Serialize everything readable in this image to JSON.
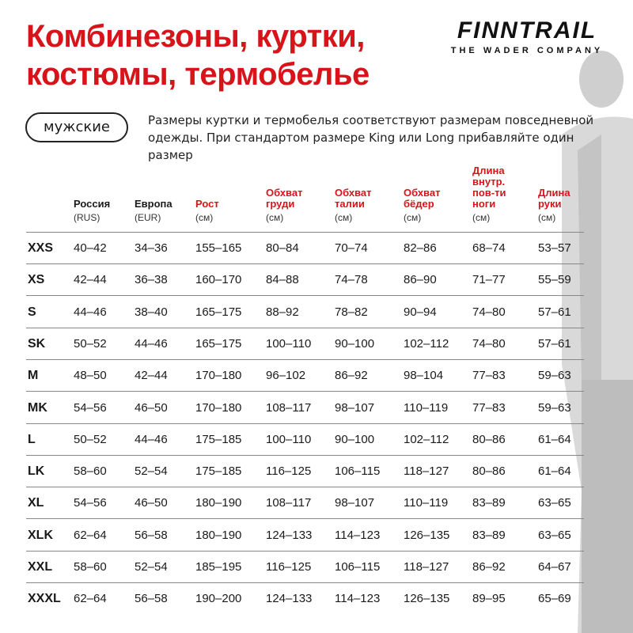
{
  "title_lines": [
    "Комбинезоны, куртки,",
    "костюмы, термобелье"
  ],
  "logo": {
    "brand": "FINNTRAIL",
    "tagline": "THE WADER COMPANY"
  },
  "category_label": "мужские",
  "note_lines": [
    "Размеры куртки и термобелья соответствуют размерам повседневной",
    "одежды. При стандартом размере King или Long прибавляйте один размер"
  ],
  "accent_color": "#d7141a",
  "columns": [
    {
      "label": "",
      "unit": ""
    },
    {
      "label": "Россия",
      "unit": "(RUS)",
      "highlight": false
    },
    {
      "label": "Европа",
      "unit": "(EUR)",
      "highlight": false
    },
    {
      "label": "Рост",
      "unit": "(см)",
      "highlight": true
    },
    {
      "label": "Обхват груди",
      "unit": "(см)",
      "highlight": true
    },
    {
      "label": "Обхват талии",
      "unit": "(см)",
      "highlight": true
    },
    {
      "label": "Обхват бёдер",
      "unit": "(см)",
      "highlight": true
    },
    {
      "label": "Длина внутр. пов-ти ноги",
      "unit": "(см)",
      "highlight": true
    },
    {
      "label": "Длина руки",
      "unit": "(см)",
      "highlight": true
    }
  ],
  "rows": [
    [
      "XXS",
      "40–42",
      "34–36",
      "155–165",
      "80–84",
      "70–74",
      "82–86",
      "68–74",
      "53–57"
    ],
    [
      "XS",
      "42–44",
      "36–38",
      "160–170",
      "84–88",
      "74–78",
      "86–90",
      "71–77",
      "55–59"
    ],
    [
      "S",
      "44–46",
      "38–40",
      "165–175",
      "88–92",
      "78–82",
      "90–94",
      "74–80",
      "57–61"
    ],
    [
      "SK",
      "50–52",
      "44–46",
      "165–175",
      "100–110",
      "90–100",
      "102–112",
      "74–80",
      "57–61"
    ],
    [
      "M",
      "48–50",
      "42–44",
      "170–180",
      "96–102",
      "86–92",
      "98–104",
      "77–83",
      "59–63"
    ],
    [
      "MK",
      "54–56",
      "46–50",
      "170–180",
      "108–117",
      "98–107",
      "110–119",
      "77–83",
      "59–63"
    ],
    [
      "L",
      "50–52",
      "44–46",
      "175–185",
      "100–110",
      "90–100",
      "102–112",
      "80–86",
      "61–64"
    ],
    [
      "LK",
      "58–60",
      "52–54",
      "175–185",
      "116–125",
      "106–115",
      "118–127",
      "80–86",
      "61–64"
    ],
    [
      "XL",
      "54–56",
      "46–50",
      "180–190",
      "108–117",
      "98–107",
      "110–119",
      "83–89",
      "63–65"
    ],
    [
      "XLK",
      "62–64",
      "56–58",
      "180–190",
      "124–133",
      "114–123",
      "126–135",
      "83–89",
      "63–65"
    ],
    [
      "XXL",
      "58–60",
      "52–54",
      "185–195",
      "116–125",
      "106–115",
      "118–127",
      "86–92",
      "64–67"
    ],
    [
      "XXXL",
      "62–64",
      "56–58",
      "190–200",
      "124–133",
      "114–123",
      "126–135",
      "89–95",
      "65–69"
    ]
  ]
}
